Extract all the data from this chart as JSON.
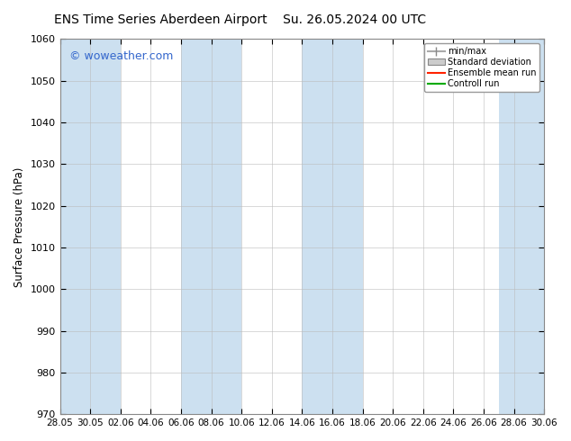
{
  "title": "ENS Time Series Aberdeen Airport",
  "title2": "Su. 26.05.2024 00 UTC",
  "ylabel": "Surface Pressure (hPa)",
  "ylim": [
    970,
    1060
  ],
  "yticks": [
    970,
    980,
    990,
    1000,
    1010,
    1020,
    1030,
    1040,
    1050,
    1060
  ],
  "xlabels": [
    "28.05",
    "30.05",
    "02.06",
    "04.06",
    "06.06",
    "08.06",
    "10.06",
    "12.06",
    "14.06",
    "16.06",
    "18.06",
    "20.06",
    "22.06",
    "24.06",
    "26.06",
    "28.06",
    "30.06"
  ],
  "background_color": "#ffffff",
  "plot_bg_color": "#ffffff",
  "band_color": "#cce0f0",
  "watermark": "© woweather.com",
  "watermark_color": "#3366cc",
  "legend_entries": [
    "min/max",
    "Standard deviation",
    "Ensemble mean run",
    "Controll run"
  ],
  "fig_width": 6.34,
  "fig_height": 4.9,
  "dpi": 100
}
